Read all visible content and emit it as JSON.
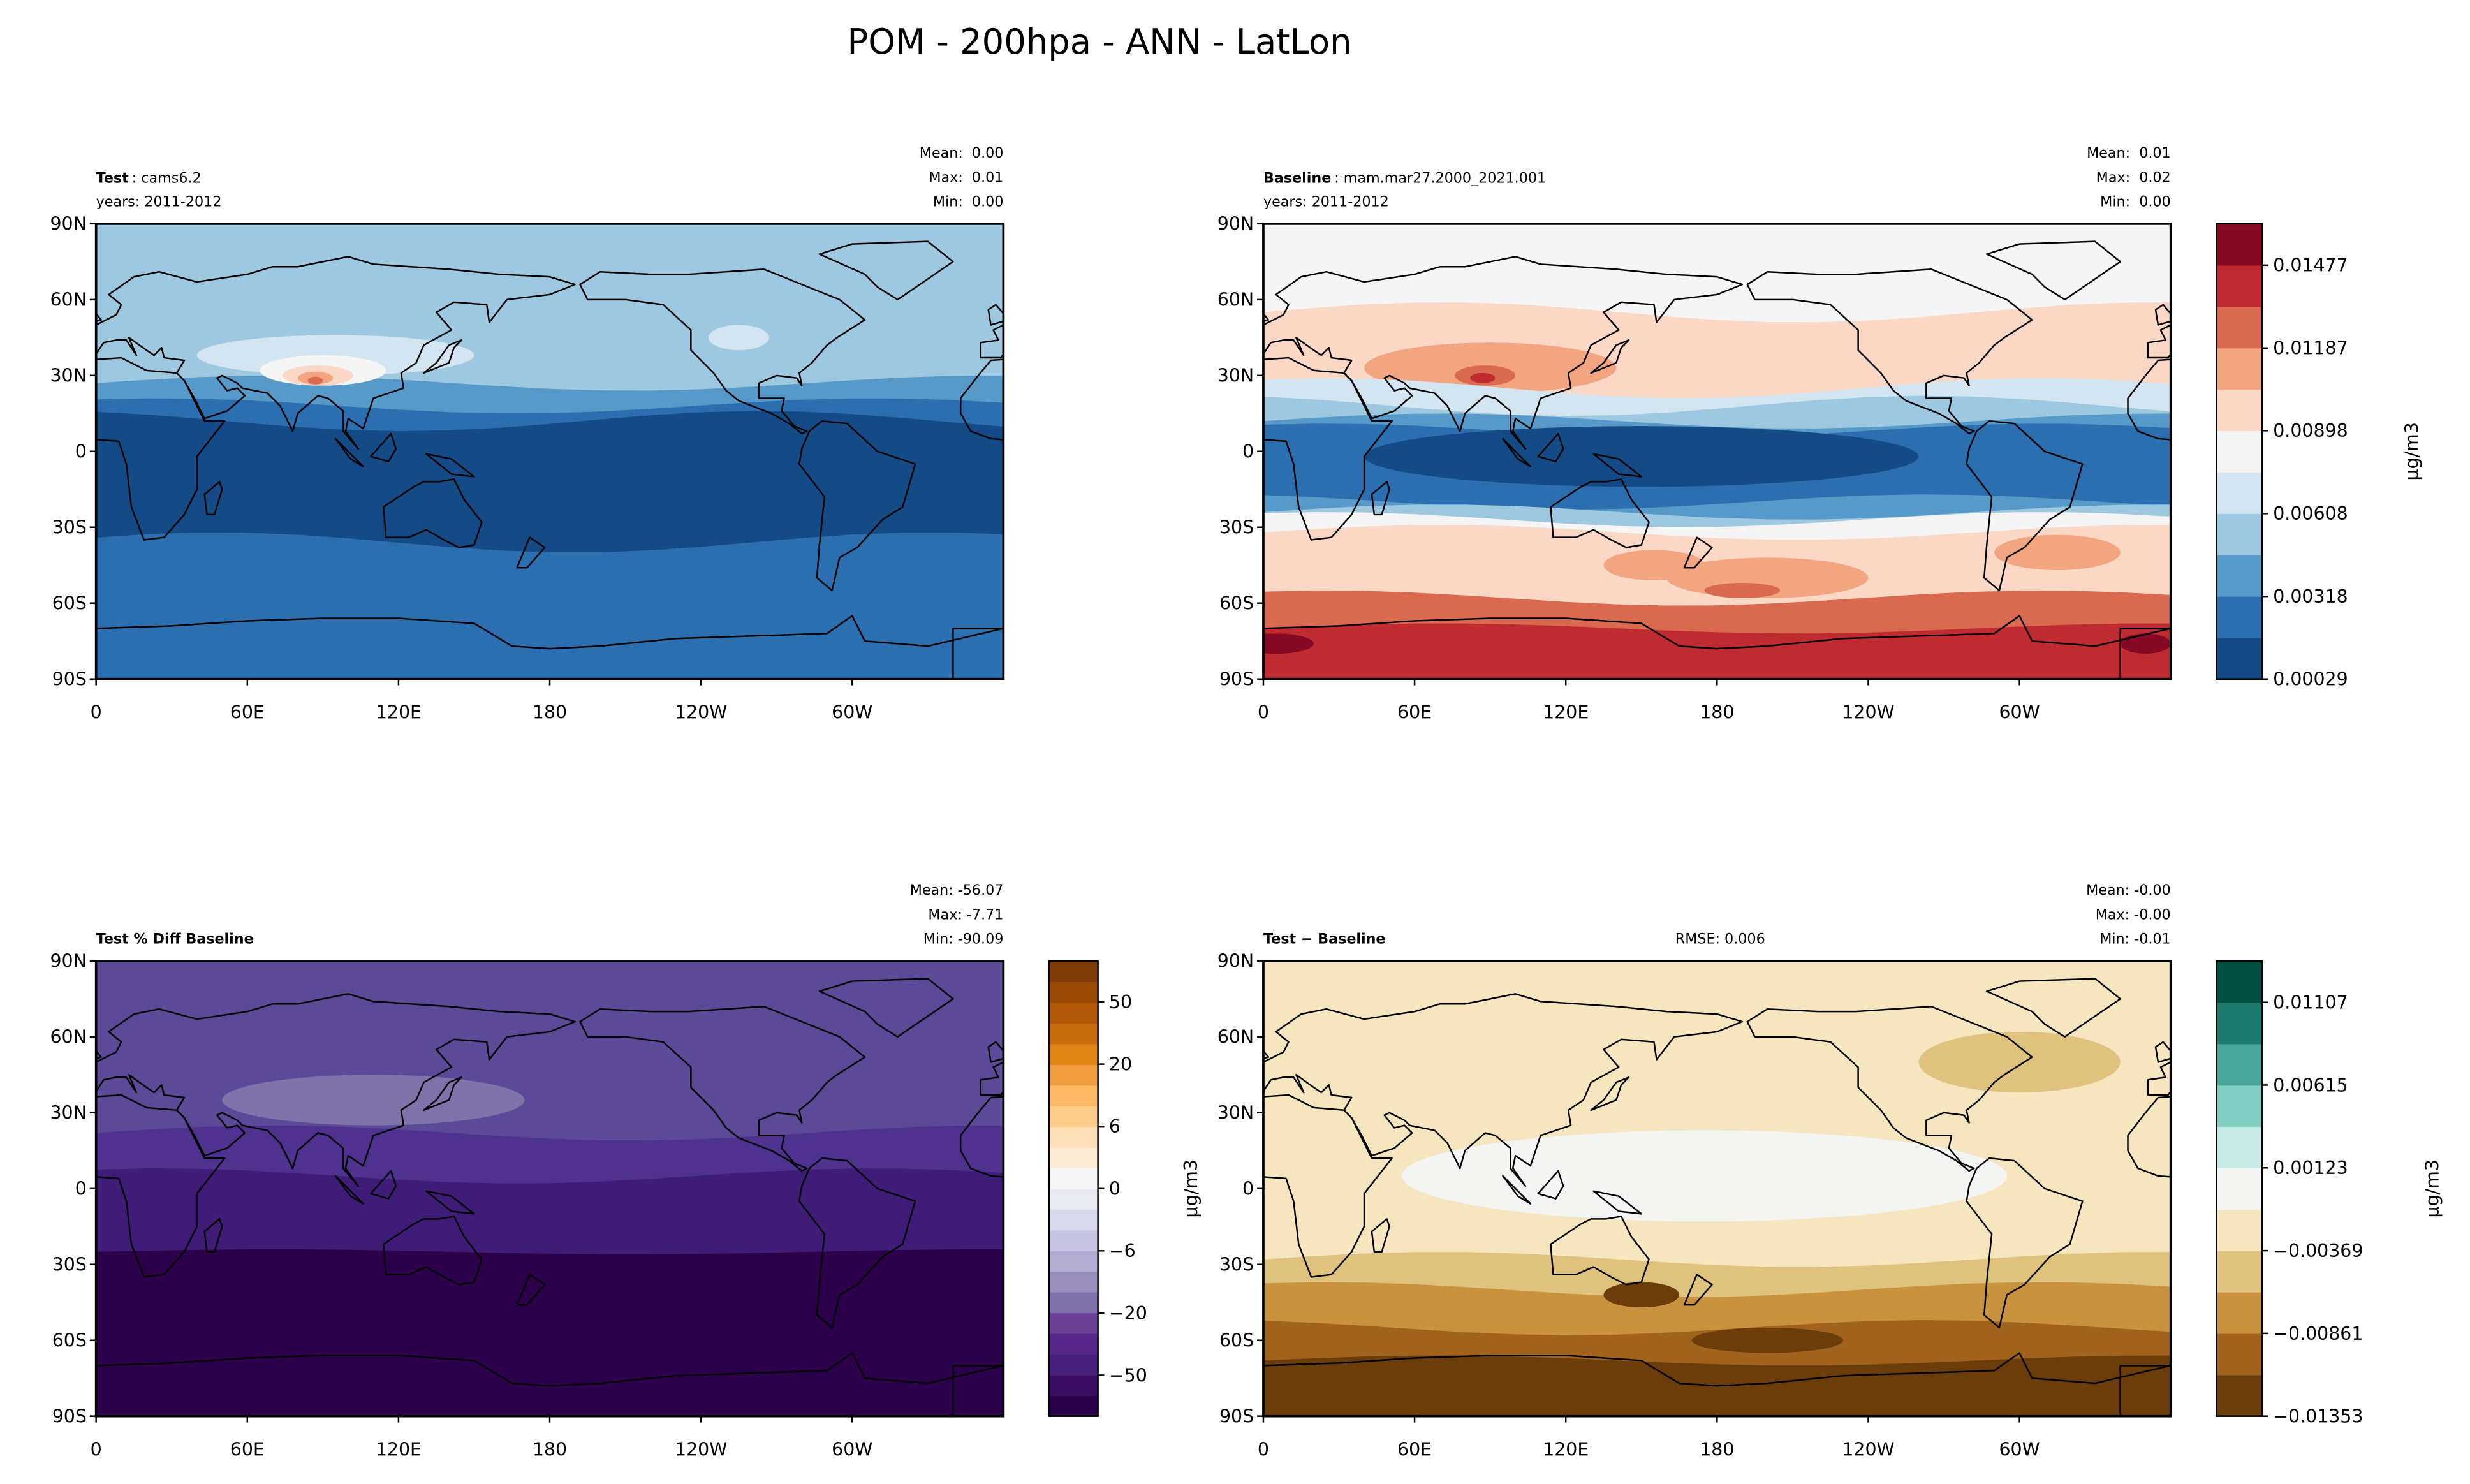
{
  "title": "POM - 200hpa - ANN - LatLon",
  "lon_lim": [
    0,
    360
  ],
  "lat_lim": [
    -90,
    90
  ],
  "lon_ticks": [
    0,
    {
      "value": 60,
      "label": "60E"
    },
    {
      "value": 120,
      "label": "120E"
    },
    180,
    {
      "value": 240,
      "label": "120W"
    },
    {
      "value": 300,
      "label": "60W"
    }
  ],
  "lat_ticks": [
    {
      "value": 90,
      "label": "90N"
    },
    {
      "value": 60,
      "label": "60N"
    },
    {
      "value": 30,
      "label": "30N"
    },
    0,
    {
      "value": -30,
      "label": "30S"
    },
    {
      "value": -60,
      "label": "60S"
    },
    {
      "value": -90,
      "label": "90S"
    }
  ],
  "panels": [
    {
      "title_bold": "Test",
      "title_rest": ": cams6.2",
      "years": "years: 2011-2012",
      "stats": [
        "Mean:  0.00",
        "Max:  0.01",
        "Min:  0.00"
      ]
    },
    {
      "title_bold": "Baseline",
      "title_rest": ": mam.mar27.2000_2021.001",
      "years": "years: 2011-2012",
      "stats": [
        "Mean:  0.01",
        "Max:  0.02",
        "Min:  0.00"
      ],
      "colorbar": {
        "label": "μg/m3",
        "lim": [
          0.00029,
          0.01622
        ],
        "ticks": [
          0.00029,
          0.00318,
          0.00608,
          0.00898,
          0.01187,
          0.01477
        ]
      }
    },
    {
      "title_bold": "Test % Diff Baseline",
      "stats": [
        "Mean: -56.07",
        "Max: -7.71",
        "Min: -90.09"
      ],
      "colorbar": {
        "label": "μg/m3",
        "ticks": [
          50,
          20,
          6,
          0,
          {
            "value": -6,
            "label": "−6"
          },
          {
            "value": -20,
            "label": "−20"
          },
          {
            "value": -50,
            "label": "−50"
          }
        ]
      }
    },
    {
      "title_bold": "Test − Baseline",
      "rmse": "RMSE: 0.006",
      "stats": [
        "Mean: -0.00",
        "Max: -0.00",
        "Min: -0.01"
      ],
      "colorbar": {
        "label": "μg/m3",
        "lim": [
          -0.01353,
          0.01353
        ],
        "ticks": [
          {
            "value": -0.01353,
            "label": "−0.01353"
          },
          {
            "value": -0.00861,
            "label": "−0.00861"
          },
          {
            "value": -0.00369,
            "label": "−0.00369"
          },
          0.00123,
          0.00615,
          0.01107
        ]
      }
    }
  ]
}
